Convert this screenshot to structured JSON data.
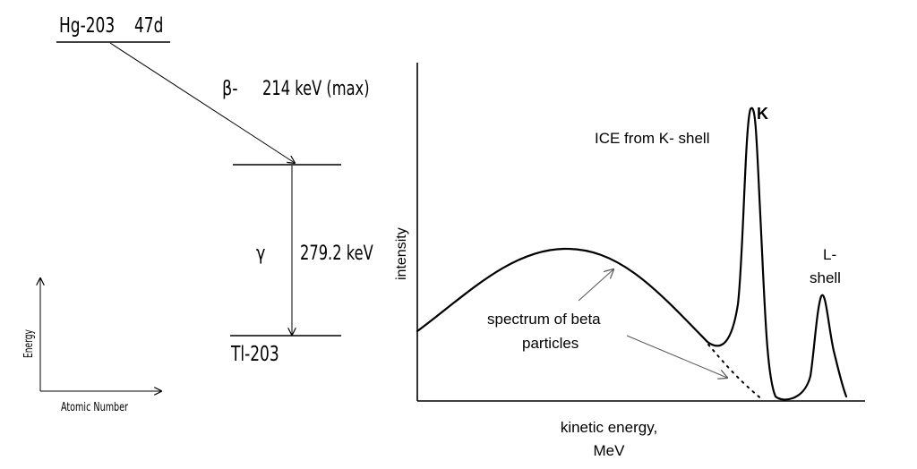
{
  "decay_scheme": {
    "parent_label": "Hg-203",
    "half_life": "47d",
    "beta_label": "β-",
    "beta_energy": "214 keV (max)",
    "gamma_label": "γ",
    "gamma_energy": "279.2 keV",
    "daughter_label": "Tl-203",
    "y_axis_label": "Energy",
    "x_axis_label": "Atomic Number"
  },
  "spectrum": {
    "y_axis_label": "intensity",
    "x_axis_label_line1": "kinetic energy,",
    "x_axis_label_line2": "MeV",
    "k_peak_label": "K",
    "ice_label": "ICE from K- shell",
    "l_peak_label_line1": "L-",
    "l_peak_label_line2": "shell",
    "beta_spectrum_label_line1": "spectrum of beta",
    "beta_spectrum_label_line2": "particles"
  }
}
